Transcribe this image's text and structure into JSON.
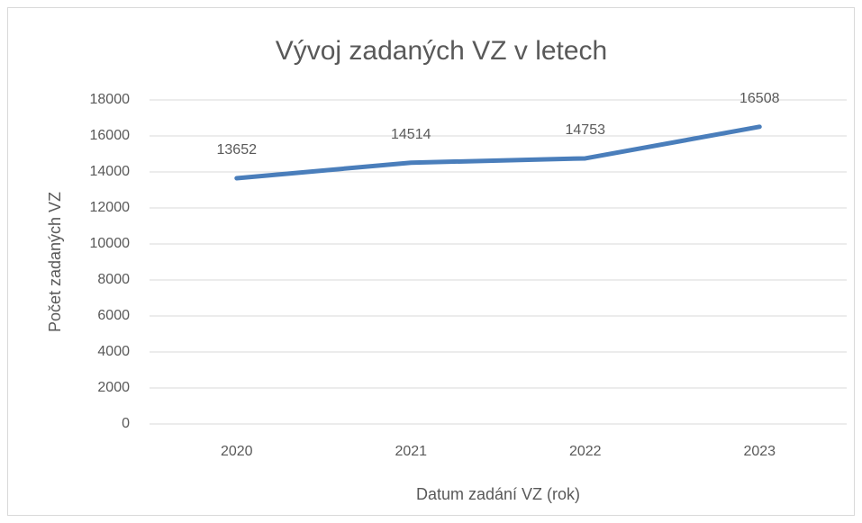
{
  "chart_data": {
    "type": "line",
    "title": "Vývoj zadaných VZ v letech",
    "x_label": "Datum zadání VZ (rok)",
    "y_label": "Počet zadaných VZ",
    "categories": [
      "2020",
      "2021",
      "2022",
      "2023"
    ],
    "series": [
      {
        "name": "Počet zadaných VZ",
        "color": "#4a7ebb",
        "values": [
          13652,
          14514,
          14753,
          16508
        ]
      }
    ],
    "ylim": [
      0,
      18000
    ],
    "yticks": [
      0,
      2000,
      4000,
      6000,
      8000,
      10000,
      12000,
      14000,
      16000,
      18000
    ],
    "grid": true,
    "data_labels": true
  }
}
